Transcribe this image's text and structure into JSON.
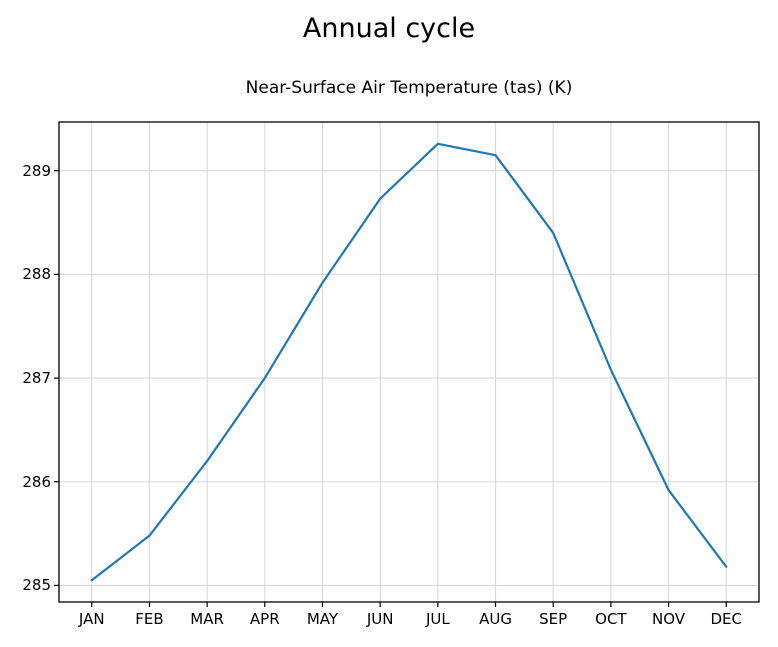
{
  "chart_data": {
    "type": "line",
    "title": "Annual cycle",
    "subtitle": "Near-Surface Air Temperature (tas) (K)",
    "categories": [
      "JAN",
      "FEB",
      "MAR",
      "APR",
      "MAY",
      "JUN",
      "JUL",
      "AUG",
      "SEP",
      "OCT",
      "NOV",
      "DEC"
    ],
    "series": [
      {
        "name": "Near-Surface Air Temperature (tas)",
        "values": [
          285.05,
          285.48,
          286.2,
          287.0,
          287.92,
          288.73,
          289.26,
          289.15,
          288.4,
          287.08,
          285.92,
          285.18
        ]
      }
    ],
    "xlabel": "",
    "ylabel": "",
    "yticks": [
      285,
      286,
      287,
      288,
      289
    ],
    "ylim": [
      284.84,
      289.47
    ],
    "grid": true,
    "legend": "none",
    "line_color": "#1f77b4",
    "grid_color": "#d8d8d8",
    "axis_color": "#000000",
    "background_color": "#ffffff"
  }
}
